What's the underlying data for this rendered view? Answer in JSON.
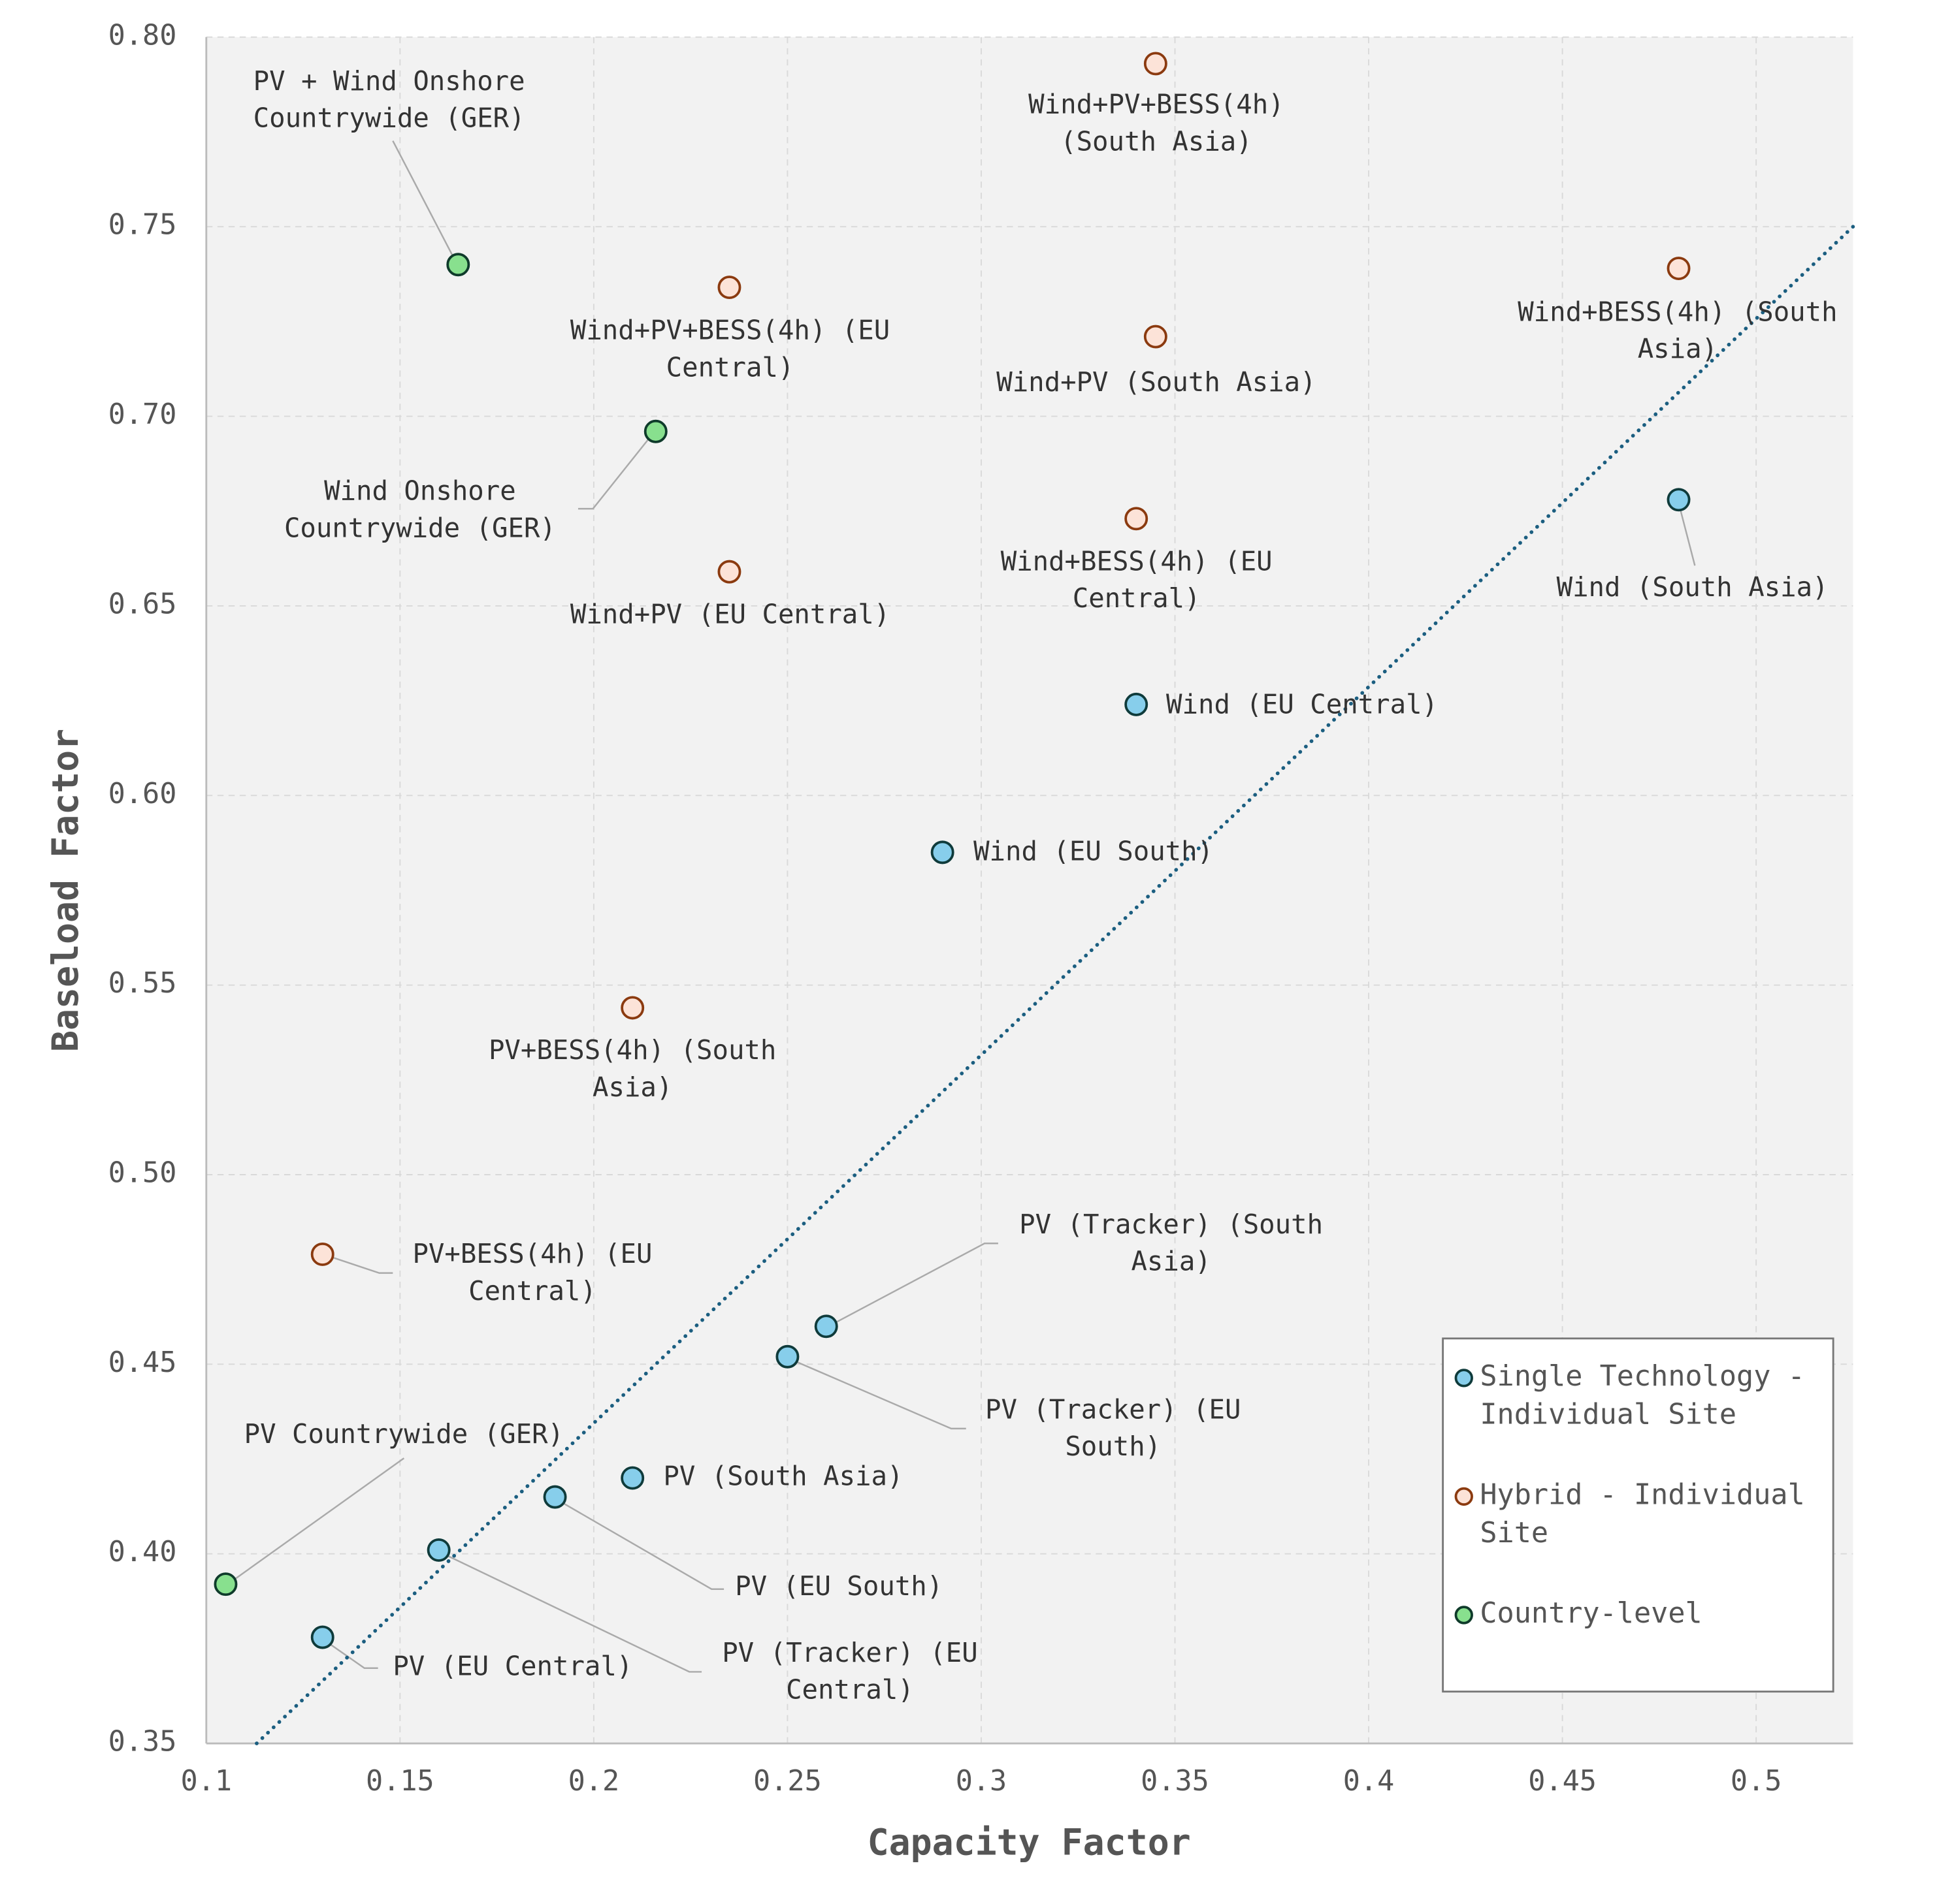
{
  "chart_data": {
    "type": "scatter",
    "xlabel": "Capacity Factor",
    "ylabel": "Baseload Factor",
    "xlim": [
      0.1,
      0.525
    ],
    "ylim": [
      0.35,
      0.8
    ],
    "xticks": [
      "0.1",
      "0.15",
      "0.2",
      "0.25",
      "0.3",
      "0.35",
      "0.4",
      "0.45",
      "0.5"
    ],
    "yticks": [
      "0.35",
      "0.40",
      "0.45",
      "0.50",
      "0.55",
      "0.60",
      "0.65",
      "0.70",
      "0.75",
      "0.80"
    ],
    "grid": true,
    "legend_position": "bottom-right",
    "trend_line": {
      "style": "dotted",
      "color": "#1b5e80",
      "points": [
        [
          0.113,
          0.35
        ],
        [
          0.525,
          0.75
        ]
      ]
    },
    "series": [
      {
        "name": "Single Technology - Individual Site",
        "legend_lines": [
          "Single Technology -",
          "Individual Site"
        ],
        "fill": "#87CEEB",
        "edge": "#0f3b3b",
        "points": [
          {
            "x": 0.48,
            "y": 0.678,
            "label": [
              "Wind (South Asia)"
            ]
          },
          {
            "x": 0.34,
            "y": 0.624,
            "label": [
              "Wind (EU Central)"
            ]
          },
          {
            "x": 0.29,
            "y": 0.585,
            "label": [
              "Wind (EU South)"
            ]
          },
          {
            "x": 0.26,
            "y": 0.46,
            "label": [
              "PV (Tracker) (South",
              "Asia)"
            ]
          },
          {
            "x": 0.25,
            "y": 0.452,
            "label": [
              "PV (Tracker) (EU",
              "South)"
            ]
          },
          {
            "x": 0.21,
            "y": 0.42,
            "label": [
              "PV (South Asia)"
            ]
          },
          {
            "x": 0.19,
            "y": 0.415,
            "label": [
              "PV (EU South)"
            ]
          },
          {
            "x": 0.16,
            "y": 0.401,
            "label": [
              "PV (Tracker) (EU",
              "Central)"
            ]
          },
          {
            "x": 0.13,
            "y": 0.378,
            "label": [
              "PV (EU Central)"
            ]
          }
        ]
      },
      {
        "name": "Hybrid - Individual Site",
        "legend_lines": [
          "Hybrid - Individual",
          "Site"
        ],
        "fill": "#FCE3D8",
        "edge": "#8B3A0F",
        "points": [
          {
            "x": 0.345,
            "y": 0.793,
            "label": [
              "Wind+PV+BESS(4h)",
              "(South Asia)"
            ]
          },
          {
            "x": 0.48,
            "y": 0.739,
            "label": [
              "Wind+BESS(4h) (South",
              "Asia)"
            ]
          },
          {
            "x": 0.235,
            "y": 0.734,
            "label": [
              "Wind+PV+BESS(4h) (EU",
              "Central)"
            ]
          },
          {
            "x": 0.345,
            "y": 0.721,
            "label": [
              "Wind+PV (South Asia)"
            ]
          },
          {
            "x": 0.34,
            "y": 0.673,
            "label": [
              "Wind+BESS(4h) (EU",
              "Central)"
            ]
          },
          {
            "x": 0.235,
            "y": 0.659,
            "label": [
              "Wind+PV (EU Central)"
            ]
          },
          {
            "x": 0.21,
            "y": 0.544,
            "label": [
              "PV+BESS(4h) (South",
              "Asia)"
            ]
          },
          {
            "x": 0.13,
            "y": 0.479,
            "label": [
              "PV+BESS(4h) (EU",
              "Central)"
            ]
          }
        ]
      },
      {
        "name": "Country-level",
        "legend_lines": [
          "Country-level"
        ],
        "fill": "#88E08E",
        "edge": "#0f3b2b",
        "points": [
          {
            "x": 0.165,
            "y": 0.74,
            "label": [
              "PV + Wind Onshore",
              "Countrywide (GER)"
            ]
          },
          {
            "x": 0.216,
            "y": 0.696,
            "label": [
              "Wind Onshore",
              "Countrywide (GER)"
            ]
          },
          {
            "x": 0.105,
            "y": 0.392,
            "label": [
              "PV Countrywide (GER)"
            ]
          }
        ]
      }
    ]
  }
}
